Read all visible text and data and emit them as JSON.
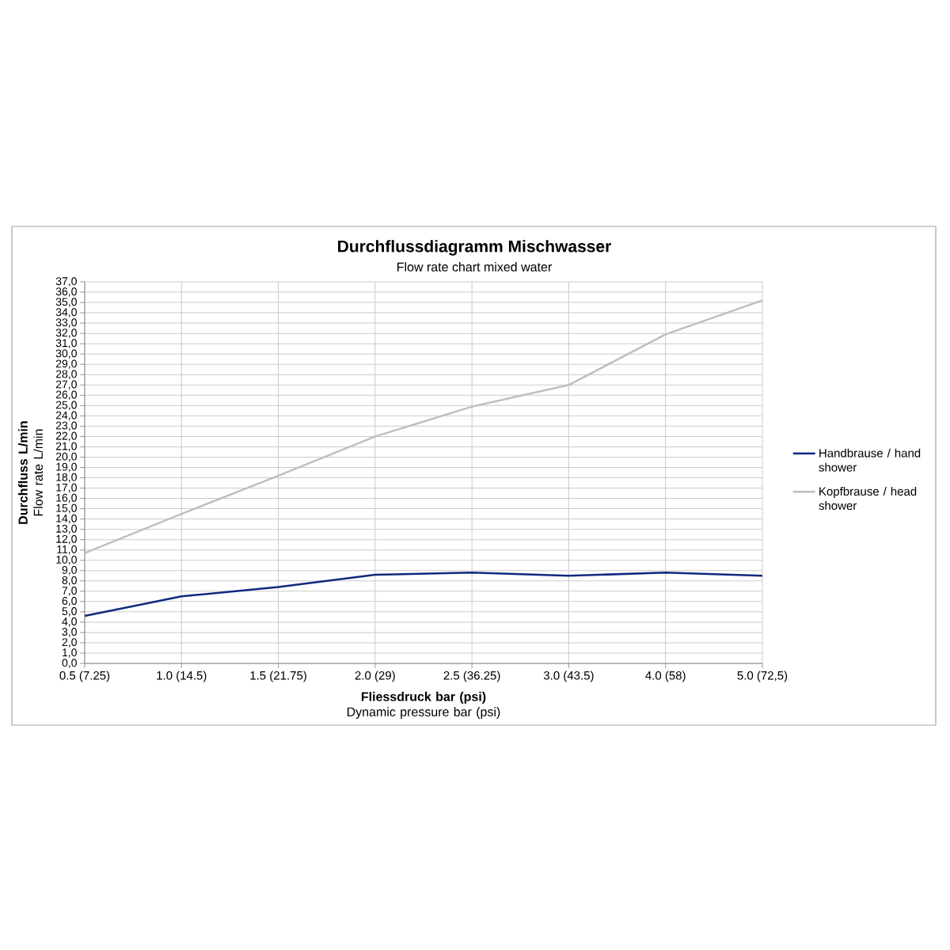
{
  "chart_data": {
    "type": "line",
    "title": "Durchflussdiagramm Mischwasser",
    "subtitle": "Flow rate chart mixed water",
    "xlabel": "**Fliessdruck bar (psi)** Dynamic pressure bar (psi)",
    "ylabel": "**Durchfluss L/min** Flow rate L/min",
    "categories": [
      "0.5 (7.25)",
      "1.0 (14.5)",
      "1.5 (21.75)",
      "2.0 (29)",
      "2.5 (36.25)",
      "3.0 (43.5)",
      "4.0 (58)",
      "5.0 (72,5)"
    ],
    "series": [
      {
        "name": "Handbrause / hand shower",
        "color": "#10297f",
        "values": [
          4.6,
          6.5,
          7.4,
          8.6,
          8.8,
          8.5,
          8.8,
          8.5
        ]
      },
      {
        "name": "Kopfbrause / head shower",
        "color": "#bfbfbf",
        "values": [
          10.7,
          14.5,
          18.2,
          22.0,
          24.9,
          27.0,
          31.9,
          35.2
        ]
      }
    ],
    "ylim": [
      0,
      37
    ],
    "yticks": [
      {
        "value": 0,
        "label": "0,0"
      },
      {
        "value": 1,
        "label": "1,0"
      },
      {
        "value": 2,
        "label": "2,0"
      },
      {
        "value": 3,
        "label": "3,0"
      },
      {
        "value": 4,
        "label": "4,0"
      },
      {
        "value": 5,
        "label": "5,0"
      },
      {
        "value": 6,
        "label": "6,0"
      },
      {
        "value": 7,
        "label": "7,0"
      },
      {
        "value": 8,
        "label": "8,0"
      },
      {
        "value": 9,
        "label": "9,0"
      },
      {
        "value": 10,
        "label": "10,0"
      },
      {
        "value": 11,
        "label": "11,0"
      },
      {
        "value": 12,
        "label": "12,0"
      },
      {
        "value": 13,
        "label": "13,0"
      },
      {
        "value": 14,
        "label": "14,0"
      },
      {
        "value": 15,
        "label": "15,0"
      },
      {
        "value": 16,
        "label": "16,0"
      },
      {
        "value": 17,
        "label": "17,0"
      },
      {
        "value": 18,
        "label": "18,0"
      },
      {
        "value": 19,
        "label": "19,0"
      },
      {
        "value": 20,
        "label": "20,0"
      },
      {
        "value": 21,
        "label": "21,0"
      },
      {
        "value": 22,
        "label": "22,0"
      },
      {
        "value": 23,
        "label": "23,0"
      },
      {
        "value": 24,
        "label": "24,0"
      },
      {
        "value": 25,
        "label": "25,0"
      },
      {
        "value": 26,
        "label": "26,0"
      },
      {
        "value": 27,
        "label": "27,0"
      },
      {
        "value": 28,
        "label": "28,0"
      },
      {
        "value": 29,
        "label": "29,0"
      },
      {
        "value": 30,
        "label": "30,0"
      },
      {
        "value": 31,
        "label": "31,0"
      },
      {
        "value": 32,
        "label": "32,0"
      },
      {
        "value": 33,
        "label": "33,0"
      },
      {
        "value": 34,
        "label": "34,0"
      },
      {
        "value": 35,
        "label": "35,0"
      },
      {
        "value": 36,
        "label": "36,0"
      },
      {
        "value": 37,
        "label": "37,0"
      }
    ],
    "grid": true,
    "legend": "right"
  }
}
